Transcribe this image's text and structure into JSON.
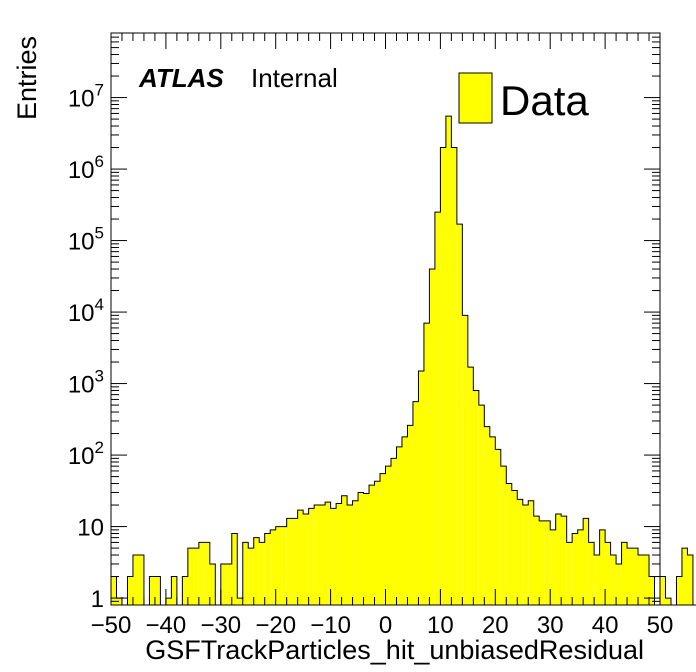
{
  "chart_data": {
    "type": "bar",
    "histogram": true,
    "title": "",
    "xlabel": "GSFTrackParticles_hit_unbiasedResidual",
    "ylabel": "Entries",
    "xlim": [
      -50,
      50
    ],
    "ylim": [
      0.8,
      80000000
    ],
    "y_scale": "log",
    "bin_width": 1,
    "grid": false,
    "legend": {
      "position": "top-right",
      "entries": [
        {
          "name": "Data",
          "color": "#ffff00"
        }
      ]
    },
    "annotations": {
      "atlas": "ATLAS",
      "label": "Internal"
    },
    "x_tick_labels": [
      "−50",
      "−40",
      "−30",
      "−20",
      "−10",
      "0",
      "10",
      "20",
      "30",
      "40",
      "50"
    ],
    "y_tick_labels": [
      {
        "value": 1,
        "base": "1",
        "exp": ""
      },
      {
        "value": 10,
        "base": "10",
        "exp": ""
      },
      {
        "value": 100,
        "base": "10",
        "exp": "2"
      },
      {
        "value": 1000,
        "base": "10",
        "exp": "3"
      },
      {
        "value": 10000,
        "base": "10",
        "exp": "4"
      },
      {
        "value": 100000,
        "base": "10",
        "exp": "5"
      },
      {
        "value": 1000000,
        "base": "10",
        "exp": "6"
      },
      {
        "value": 10000000,
        "base": "10",
        "exp": "7"
      }
    ],
    "fill_color": "#ffff00",
    "line_color": "#000000",
    "values": [
      2,
      1,
      0,
      2,
      4,
      4,
      0,
      2,
      2,
      0,
      1,
      2,
      0,
      2,
      5,
      5,
      6,
      6,
      3,
      0,
      3,
      3,
      8,
      1,
      6,
      5,
      7,
      6,
      8,
      9,
      10,
      10,
      13,
      13,
      17,
      15,
      18,
      20,
      20,
      22,
      18,
      21,
      27,
      20,
      23,
      30,
      29,
      38,
      43,
      55,
      70,
      90,
      130,
      180,
      260,
      560,
      1500,
      7000,
      40000,
      250000,
      2000000,
      5500000,
      2000000,
      170000,
      9000,
      1700,
      800,
      500,
      250,
      180,
      120,
      70,
      40,
      32,
      24,
      20,
      23,
      14,
      12,
      12,
      9,
      15,
      14,
      6,
      8,
      9,
      13,
      6,
      4,
      9,
      6,
      4,
      3,
      6,
      5,
      5,
      4,
      4,
      2,
      0,
      2,
      1,
      0,
      2,
      5,
      4,
      0,
      2,
      2,
      0
    ]
  }
}
